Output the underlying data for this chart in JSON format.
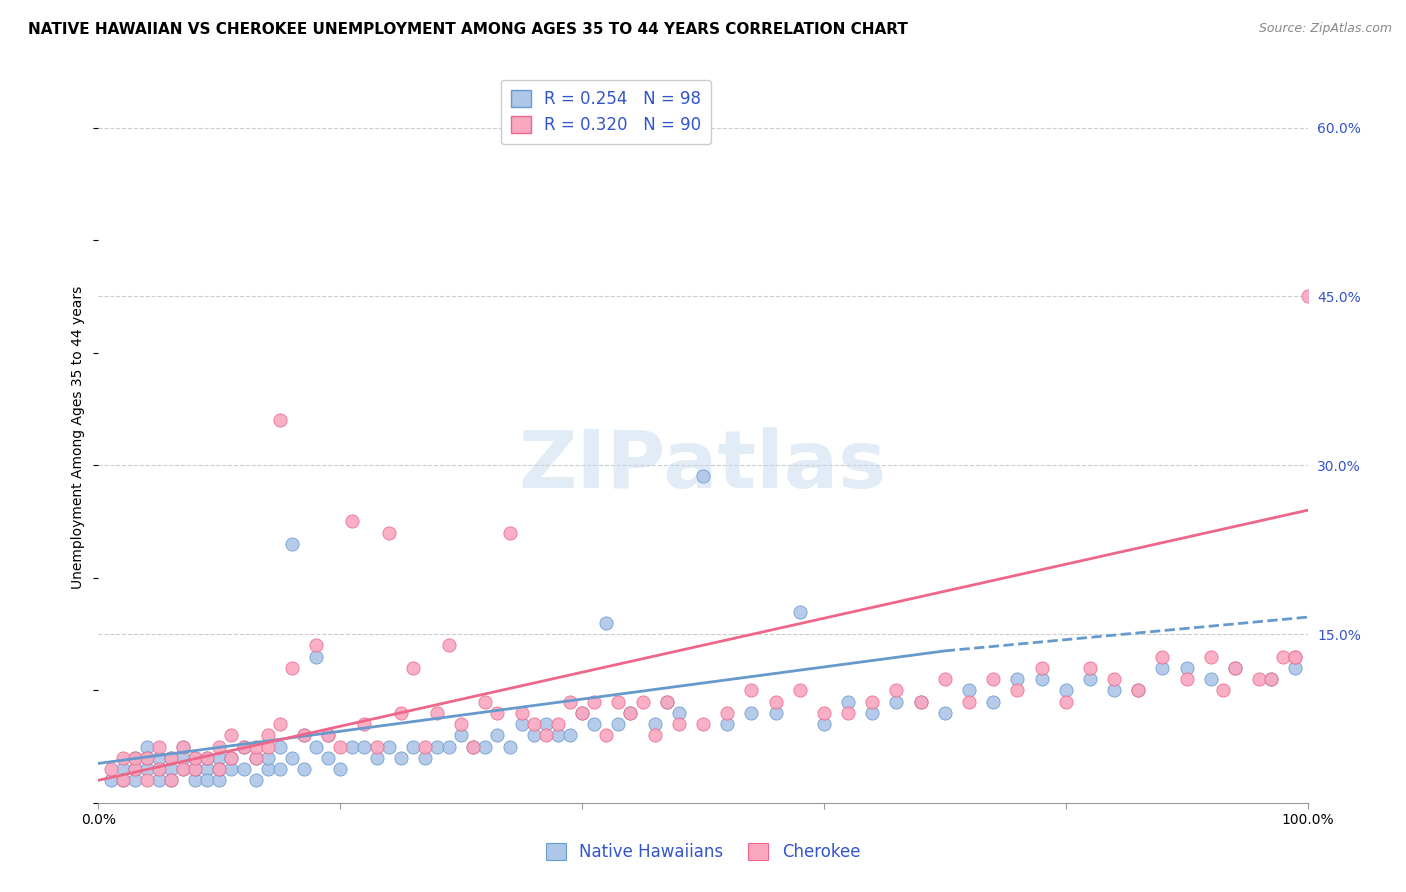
{
  "title": "NATIVE HAWAIIAN VS CHEROKEE UNEMPLOYMENT AMONG AGES 35 TO 44 YEARS CORRELATION CHART",
  "source": "Source: ZipAtlas.com",
  "ylabel": "Unemployment Among Ages 35 to 44 years",
  "xlim": [
    0,
    100
  ],
  "ylim": [
    0,
    65
  ],
  "xtick_positions": [
    0,
    20,
    40,
    60,
    80,
    100
  ],
  "xtick_labels": [
    "0.0%",
    "",
    "",
    "",
    "",
    "100.0%"
  ],
  "ytick_right_positions": [
    15,
    30,
    45,
    60
  ],
  "ytick_right_labels": [
    "15.0%",
    "30.0%",
    "45.0%",
    "60.0%"
  ],
  "blue_color": "#aec6e8",
  "pink_color": "#f9a8c0",
  "line_blue_color": "#6699cc",
  "line_pink_color": "#ee6688",
  "legend_text_color": "#3355cc",
  "grid_color": "#cccccc",
  "watermark_color": "#c5daf0",
  "blue_R": 0.254,
  "blue_N": 98,
  "pink_R": 0.32,
  "pink_N": 90,
  "blue_scatter_x": [
    1,
    2,
    2,
    3,
    3,
    3,
    4,
    4,
    4,
    5,
    5,
    5,
    6,
    6,
    6,
    7,
    7,
    7,
    8,
    8,
    8,
    9,
    9,
    9,
    10,
    10,
    10,
    11,
    11,
    12,
    12,
    13,
    13,
    14,
    14,
    15,
    15,
    16,
    16,
    17,
    17,
    18,
    18,
    19,
    19,
    20,
    21,
    22,
    23,
    24,
    25,
    26,
    27,
    28,
    29,
    30,
    31,
    32,
    33,
    34,
    35,
    36,
    37,
    38,
    39,
    40,
    41,
    42,
    43,
    44,
    46,
    47,
    48,
    50,
    52,
    54,
    56,
    58,
    60,
    62,
    64,
    66,
    68,
    70,
    72,
    74,
    76,
    78,
    80,
    82,
    84,
    86,
    88,
    90,
    92,
    94,
    97,
    99
  ],
  "blue_scatter_y": [
    2,
    3,
    2,
    4,
    3,
    2,
    3,
    5,
    4,
    3,
    4,
    2,
    4,
    3,
    2,
    5,
    3,
    4,
    4,
    2,
    3,
    3,
    4,
    2,
    4,
    2,
    3,
    3,
    4,
    5,
    3,
    4,
    2,
    3,
    4,
    3,
    5,
    23,
    4,
    6,
    3,
    13,
    5,
    4,
    6,
    3,
    5,
    5,
    4,
    5,
    4,
    5,
    4,
    5,
    5,
    6,
    5,
    5,
    6,
    5,
    7,
    6,
    7,
    6,
    6,
    8,
    7,
    16,
    7,
    8,
    7,
    9,
    8,
    29,
    7,
    8,
    8,
    17,
    7,
    9,
    8,
    9,
    9,
    8,
    10,
    9,
    11,
    11,
    10,
    11,
    10,
    10,
    12,
    12,
    11,
    12,
    11,
    12
  ],
  "pink_scatter_x": [
    1,
    2,
    2,
    3,
    3,
    4,
    4,
    5,
    5,
    6,
    6,
    7,
    7,
    8,
    8,
    9,
    10,
    10,
    11,
    11,
    12,
    13,
    13,
    14,
    14,
    15,
    15,
    16,
    17,
    18,
    19,
    20,
    21,
    22,
    23,
    24,
    25,
    26,
    27,
    28,
    29,
    30,
    31,
    32,
    33,
    34,
    35,
    36,
    37,
    38,
    39,
    40,
    41,
    42,
    43,
    44,
    45,
    46,
    47,
    48,
    50,
    52,
    54,
    56,
    58,
    60,
    62,
    64,
    66,
    68,
    70,
    72,
    74,
    76,
    78,
    80,
    82,
    84,
    86,
    88,
    90,
    92,
    93,
    94,
    96,
    97,
    98,
    99,
    99,
    100
  ],
  "pink_scatter_y": [
    3,
    4,
    2,
    3,
    4,
    2,
    4,
    3,
    5,
    2,
    4,
    3,
    5,
    3,
    4,
    4,
    3,
    5,
    4,
    6,
    5,
    4,
    5,
    6,
    5,
    34,
    7,
    12,
    6,
    14,
    6,
    5,
    25,
    7,
    5,
    24,
    8,
    12,
    5,
    8,
    14,
    7,
    5,
    9,
    8,
    24,
    8,
    7,
    6,
    7,
    9,
    8,
    9,
    6,
    9,
    8,
    9,
    6,
    9,
    7,
    7,
    8,
    10,
    9,
    10,
    8,
    8,
    9,
    10,
    9,
    11,
    9,
    11,
    10,
    12,
    9,
    12,
    11,
    10,
    13,
    11,
    13,
    10,
    12,
    11,
    11,
    13,
    13,
    13,
    45
  ],
  "blue_line_x0": 0,
  "blue_line_x1": 70,
  "blue_line_y0": 3.5,
  "blue_line_y1": 13.5,
  "blue_dash_x0": 70,
  "blue_dash_x1": 100,
  "blue_dash_y0": 13.5,
  "blue_dash_y1": 16.5,
  "pink_line_x0": 0,
  "pink_line_x1": 100,
  "pink_line_y0": 2.0,
  "pink_line_y1": 26.0,
  "title_fontsize": 11,
  "axis_label_fontsize": 10,
  "tick_fontsize": 10,
  "legend_fontsize": 12,
  "source_fontsize": 9,
  "bg_color": "#ffffff"
}
